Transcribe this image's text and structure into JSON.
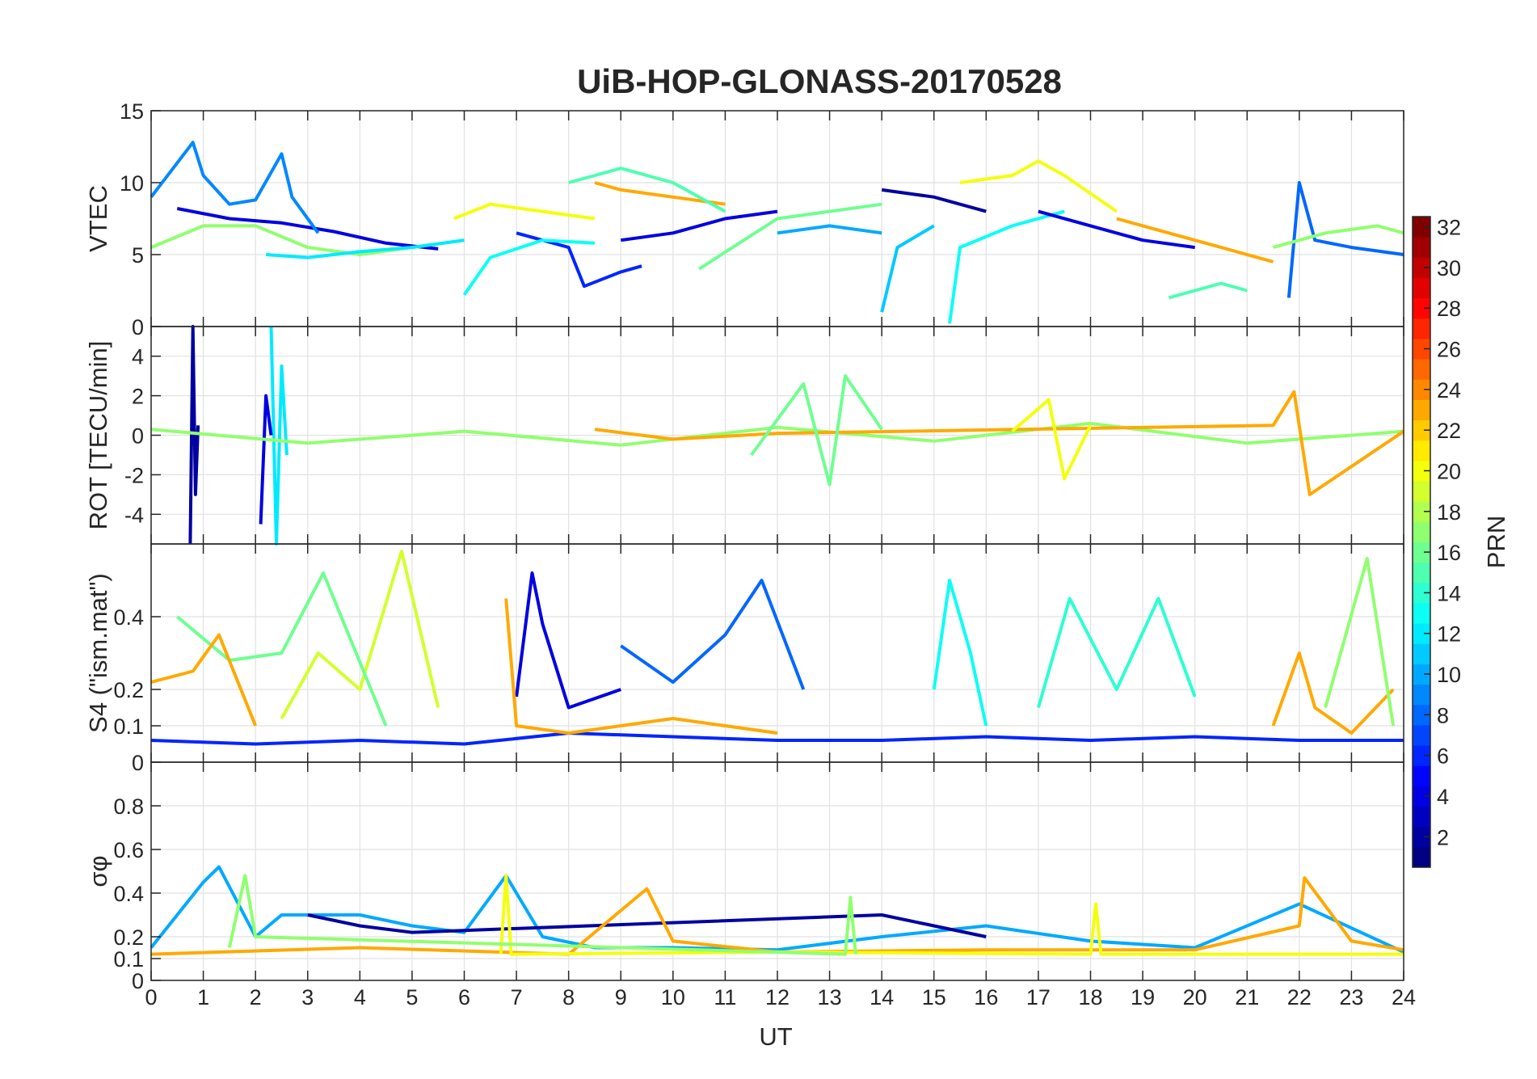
{
  "chart_data": {
    "type": "line",
    "title": "UiB-HOP-GLONASS-20170528",
    "xlabel": "UT",
    "xlim": [
      0,
      24
    ],
    "x_ticks": [
      "0",
      "1",
      "2",
      "3",
      "4",
      "5",
      "6",
      "7",
      "8",
      "9",
      "10",
      "11",
      "12",
      "13",
      "14",
      "15",
      "16",
      "17",
      "18",
      "19",
      "20",
      "21",
      "22",
      "23",
      "24"
    ],
    "grid": true,
    "panels": [
      {
        "ylabel": "VTEC",
        "ylim": [
          0,
          15
        ],
        "y_ticks": [
          "0",
          "5",
          "10",
          "15"
        ],
        "series": [
          {
            "prn": 4,
            "x": [
              0.5,
              1.5,
              2.5,
              3.5,
              4.5,
              5.5
            ],
            "values": [
              8.2,
              7.5,
              7.2,
              6.6,
              5.8,
              5.4
            ]
          },
          {
            "prn": 9,
            "x": [
              0,
              0.8,
              1.0,
              1.5,
              2.0,
              2.5,
              2.7,
              3.2
            ],
            "values": [
              9.0,
              12.8,
              10.5,
              8.5,
              8.8,
              12.0,
              9.0,
              6.5
            ]
          },
          {
            "prn": 17,
            "x": [
              0,
              1.0,
              2.0,
              3.0,
              4.0,
              5.0,
              6.0
            ],
            "values": [
              5.5,
              7.0,
              7.0,
              5.5,
              5.0,
              5.5,
              6.0
            ]
          },
          {
            "prn": 12,
            "x": [
              2.2,
              3.0,
              4.0,
              5.0,
              6.0
            ],
            "values": [
              5.0,
              4.8,
              5.2,
              5.5,
              6.0
            ]
          },
          {
            "prn": 6,
            "x": [
              7.0,
              8.0,
              8.3,
              9.0,
              9.4
            ],
            "values": [
              6.5,
              5.5,
              2.8,
              3.8,
              4.2
            ]
          },
          {
            "prn": 13,
            "x": [
              6.0,
              6.5,
              7.5,
              8.5
            ],
            "values": [
              2.2,
              4.8,
              6.0,
              5.8
            ]
          },
          {
            "prn": 20,
            "x": [
              5.8,
              6.5,
              7.5,
              8.5
            ],
            "values": [
              7.5,
              8.5,
              8.0,
              7.5
            ]
          },
          {
            "prn": 23,
            "x": [
              8.5,
              9.0,
              10.0,
              11.0
            ],
            "values": [
              10.0,
              9.5,
              9.0,
              8.5
            ]
          },
          {
            "prn": 15,
            "x": [
              8.0,
              9.0,
              10.0,
              11.0
            ],
            "values": [
              10.0,
              11.0,
              10.0,
              8.0
            ]
          },
          {
            "prn": 4,
            "x": [
              9.0,
              10.0,
              11.0,
              12.0
            ],
            "values": [
              6.0,
              6.5,
              7.5,
              8.0
            ]
          },
          {
            "prn": 16,
            "x": [
              10.5,
              12.0,
              13.0,
              14.0
            ],
            "values": [
              4.0,
              7.5,
              8.0,
              8.5
            ]
          },
          {
            "prn": 10,
            "x": [
              12.0,
              13.0,
              14.0
            ],
            "values": [
              6.5,
              7.0,
              6.5
            ]
          },
          {
            "prn": 2,
            "x": [
              14.0,
              15.0,
              16.0
            ],
            "values": [
              9.5,
              9.0,
              8.0
            ]
          },
          {
            "prn": 11,
            "x": [
              14.0,
              14.3,
              15.0
            ],
            "values": [
              1.0,
              5.5,
              7.0
            ]
          },
          {
            "prn": 13,
            "x": [
              15.3,
              15.5,
              16.5,
              17.5
            ],
            "values": [
              0.2,
              5.5,
              7.0,
              8.0
            ]
          },
          {
            "prn": 20,
            "x": [
              15.5,
              16.5,
              17.0,
              17.5,
              18.5
            ],
            "values": [
              10.0,
              10.5,
              11.5,
              10.5,
              8.0
            ]
          },
          {
            "prn": 4,
            "x": [
              17.0,
              18.0,
              19.0,
              20.0
            ],
            "values": [
              8.0,
              7.0,
              6.0,
              5.5
            ]
          },
          {
            "prn": 23,
            "x": [
              18.5,
              19.5,
              20.5,
              21.5
            ],
            "values": [
              7.5,
              6.5,
              5.5,
              4.5
            ]
          },
          {
            "prn": 15,
            "x": [
              19.5,
              20.5,
              21.0
            ],
            "values": [
              2.0,
              3.0,
              2.5
            ]
          },
          {
            "prn": 8,
            "x": [
              21.8,
              22.0,
              22.3,
              23.0,
              24.0
            ],
            "values": [
              2.0,
              10.0,
              6.0,
              5.5,
              5.0
            ]
          },
          {
            "prn": 17,
            "x": [
              21.5,
              22.5,
              23.5,
              24.0
            ],
            "values": [
              5.5,
              6.5,
              7.0,
              6.5
            ]
          }
        ]
      },
      {
        "ylabel": "ROT [TECU/min]",
        "ylim": [
          -5.5,
          5.5
        ],
        "y_ticks": [
          "-4",
          "-2",
          "0",
          "2",
          "4"
        ],
        "series": [
          {
            "prn": 2,
            "x": [
              0.75,
              0.8,
              0.85,
              0.9
            ],
            "values": [
              -5.5,
              5.5,
              -3.0,
              0.5
            ]
          },
          {
            "prn": 12,
            "x": [
              2.3,
              2.4,
              2.5,
              2.6
            ],
            "values": [
              5.5,
              -5.5,
              3.5,
              -1.0
            ]
          },
          {
            "prn": 4,
            "x": [
              2.1,
              2.2,
              2.3
            ],
            "values": [
              -4.5,
              2.0,
              0
            ]
          },
          {
            "prn": 17,
            "x": [
              0,
              3,
              6,
              9,
              12,
              15,
              18,
              21,
              24
            ],
            "values": [
              0.3,
              -0.4,
              0.2,
              -0.5,
              0.4,
              -0.3,
              0.6,
              -0.4,
              0.2
            ]
          },
          {
            "prn": 23,
            "x": [
              8.5,
              10,
              12,
              21.5,
              21.9,
              22.2,
              24
            ],
            "values": [
              0.3,
              -0.2,
              0.1,
              0.5,
              2.2,
              -3.0,
              0.2
            ]
          },
          {
            "prn": 20,
            "x": [
              16.5,
              17.2,
              17.5,
              18.0
            ],
            "values": [
              0.2,
              1.8,
              -2.2,
              0.5
            ]
          },
          {
            "prn": 16,
            "x": [
              11.5,
              12.5,
              13.0,
              13.3,
              14.0
            ],
            "values": [
              -1.0,
              2.6,
              -2.5,
              3.0,
              0.3
            ]
          }
        ]
      },
      {
        "ylabel": "S4 (\"ism.mat\")",
        "ylim": [
          0,
          0.6
        ],
        "y_ticks": [
          "0",
          "0.1",
          "0.2",
          "0.4"
        ],
        "series": [
          {
            "prn": 6,
            "x": [
              0,
              2,
              4,
              6,
              8,
              10,
              12,
              14,
              16,
              18,
              20,
              22,
              24
            ],
            "values": [
              0.06,
              0.05,
              0.06,
              0.05,
              0.08,
              0.07,
              0.06,
              0.06,
              0.07,
              0.06,
              0.07,
              0.06,
              0.06
            ]
          },
          {
            "prn": 19,
            "x": [
              2.5,
              3.2,
              4.0,
              4.8,
              5.5
            ],
            "values": [
              0.12,
              0.3,
              0.2,
              0.58,
              0.15
            ]
          },
          {
            "prn": 16,
            "x": [
              0.5,
              1.5,
              2.5,
              3.3,
              4.5
            ],
            "values": [
              0.4,
              0.28,
              0.3,
              0.52,
              0.1
            ]
          },
          {
            "prn": 4,
            "x": [
              7.0,
              7.3,
              7.5,
              8.0,
              9.0
            ],
            "values": [
              0.18,
              0.52,
              0.38,
              0.15,
              0.2
            ]
          },
          {
            "prn": 8,
            "x": [
              9.0,
              10.0,
              11.0,
              11.7,
              12.5
            ],
            "values": [
              0.32,
              0.22,
              0.35,
              0.5,
              0.2
            ]
          },
          {
            "prn": 13,
            "x": [
              15.0,
              15.3,
              15.7,
              16.0
            ],
            "values": [
              0.2,
              0.5,
              0.3,
              0.1
            ]
          },
          {
            "prn": 14,
            "x": [
              17.0,
              17.6,
              18.5,
              19.3,
              20.0
            ],
            "values": [
              0.15,
              0.45,
              0.2,
              0.45,
              0.18
            ]
          },
          {
            "prn": 23,
            "x": [
              0,
              0.8,
              1.3,
              2.0
            ],
            "values": [
              0.22,
              0.25,
              0.35,
              0.1
            ]
          },
          {
            "prn": 23,
            "x": [
              6.8,
              7.0,
              8.0,
              10.0,
              12.0
            ],
            "values": [
              0.45,
              0.1,
              0.08,
              0.12,
              0.08
            ]
          },
          {
            "prn": 23,
            "x": [
              21.5,
              22.0,
              22.3,
              23.0,
              23.8
            ],
            "values": [
              0.1,
              0.3,
              0.15,
              0.08,
              0.2
            ]
          },
          {
            "prn": 17,
            "x": [
              22.5,
              23.3,
              23.8
            ],
            "values": [
              0.15,
              0.56,
              0.1
            ]
          }
        ]
      },
      {
        "ylabel": "σφ",
        "ylim": [
          0,
          1
        ],
        "y_ticks": [
          "0",
          "0.1",
          "0.2",
          "0.4",
          "0.6",
          "0.8"
        ],
        "series": [
          {
            "prn": 10,
            "x": [
              0,
              1.0,
              1.3,
              2.0,
              2.5,
              3.0,
              4.0,
              5.0,
              6.0,
              6.8,
              7.5,
              8.5,
              10,
              12,
              14,
              16,
              18,
              20,
              22,
              24
            ],
            "values": [
              0.15,
              0.45,
              0.52,
              0.2,
              0.3,
              0.3,
              0.3,
              0.25,
              0.22,
              0.48,
              0.2,
              0.15,
              0.15,
              0.14,
              0.2,
              0.25,
              0.18,
              0.15,
              0.35,
              0.13
            ]
          },
          {
            "prn": 2,
            "x": [
              3.0,
              4.0,
              5.0,
              14.0,
              15.0,
              16.0
            ],
            "values": [
              0.3,
              0.25,
              0.22,
              0.3,
              0.25,
              0.2
            ]
          },
          {
            "prn": 23,
            "x": [
              0,
              4,
              8,
              9.5,
              10,
              12,
              16,
              20,
              22,
              22.1,
              23,
              24
            ],
            "values": [
              0.12,
              0.15,
              0.12,
              0.42,
              0.18,
              0.13,
              0.14,
              0.14,
              0.25,
              0.47,
              0.18,
              0.14
            ]
          },
          {
            "prn": 20,
            "x": [
              6.7,
              6.8,
              6.9,
              12,
              18.0,
              18.1,
              18.2,
              24
            ],
            "values": [
              0.12,
              0.48,
              0.12,
              0.13,
              0.12,
              0.35,
              0.12,
              0.12
            ]
          },
          {
            "prn": 17,
            "x": [
              1.5,
              1.8,
              2.0,
              13.3,
              13.4,
              13.5
            ],
            "values": [
              0.15,
              0.48,
              0.2,
              0.12,
              0.38,
              0.12
            ]
          }
        ]
      }
    ],
    "colorbar": {
      "label": "PRN",
      "range": [
        1,
        32
      ],
      "ticks": [
        "2",
        "4",
        "6",
        "8",
        "10",
        "12",
        "14",
        "16",
        "18",
        "20",
        "22",
        "24",
        "26",
        "28",
        "30",
        "32"
      ],
      "colormap": "jet"
    }
  }
}
